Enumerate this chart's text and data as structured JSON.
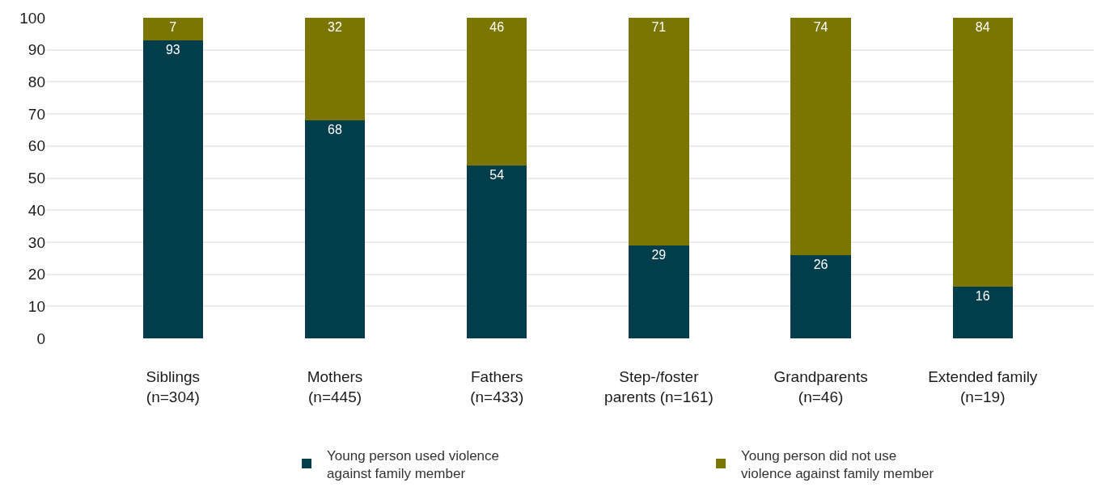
{
  "chart_data": {
    "type": "bar",
    "stacked": true,
    "categories": [
      "Siblings\n(n=304)",
      "Mothers\n(n=445)",
      "Fathers\n(n=433)",
      "Step-/foster\nparents (n=161)",
      "Grandparents\n(n=46)",
      "Extended family\n(n=19)"
    ],
    "series": [
      {
        "name": "Young person used violence\nagainst family member",
        "color": "#023d4c",
        "values": [
          93,
          68,
          54,
          29,
          26,
          16
        ]
      },
      {
        "name": "Young person did not use\nviolence against family member",
        "color": "#7a7601",
        "values": [
          7,
          32,
          46,
          71,
          74,
          84
        ]
      }
    ],
    "ylim": [
      0,
      100
    ],
    "yticks": [
      0,
      10,
      20,
      30,
      40,
      50,
      60,
      70,
      80,
      90,
      100
    ],
    "grid": "y",
    "legend": "bottom",
    "data_labels": true
  }
}
